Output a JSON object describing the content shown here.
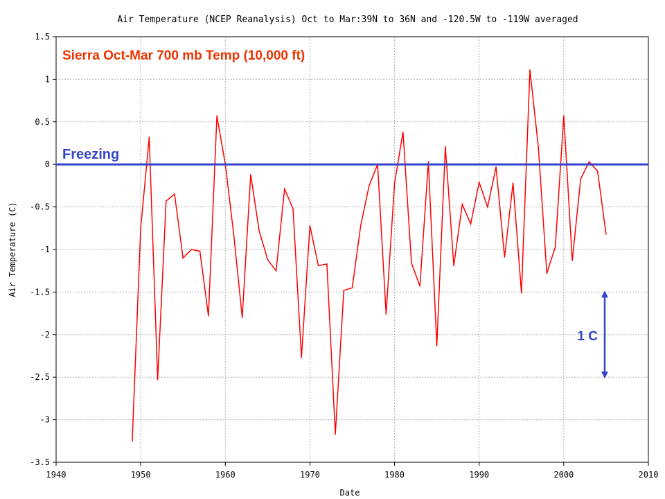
{
  "chart_data": {
    "type": "line",
    "title": "Air Temperature (NCEP Reanalysis) Oct to Mar:39N to 36N and -120.5W to -119W averaged",
    "subtitle": "Sierra Oct-Mar 700 mb Temp  (10,000 ft)",
    "xlabel": "Date",
    "ylabel": "Air Temperature (C)",
    "xlim": [
      1940,
      2010
    ],
    "ylim": [
      -3.5,
      1.5
    ],
    "grid": true,
    "x_ticks": [
      "1940",
      "1950",
      "1960",
      "1970",
      "1980",
      "1990",
      "2000",
      "2010"
    ],
    "y_ticks": [
      "1.5",
      "1",
      "0.5",
      "0",
      "-0.5",
      "-1",
      "-1.5",
      "-2",
      "-2.5",
      "-3",
      "-3.5"
    ],
    "series": [
      {
        "color": "#ff0000",
        "x": [
          1949,
          1950,
          1951,
          1952,
          1953,
          1954,
          1955,
          1956,
          1957,
          1958,
          1959,
          1960,
          1961,
          1962,
          1963,
          1964,
          1965,
          1966,
          1967,
          1968,
          1969,
          1970,
          1971,
          1972,
          1973,
          1974,
          1975,
          1976,
          1977,
          1978,
          1979,
          1980,
          1981,
          1982,
          1983,
          1984,
          1985,
          1986,
          1987,
          1988,
          1989,
          1990,
          1991,
          1992,
          1993,
          1994,
          1995,
          1996,
          1997,
          1998,
          1999,
          2000,
          2001,
          2002,
          2003,
          2004,
          2005
        ],
        "y": [
          -3.25,
          -0.75,
          0.32,
          -2.53,
          -0.43,
          -0.35,
          -1.1,
          -1.0,
          -1.02,
          -1.78,
          0.57,
          0.0,
          -0.83,
          -1.8,
          -0.12,
          -0.78,
          -1.12,
          -1.25,
          -0.29,
          -0.52,
          -2.27,
          -0.72,
          -1.19,
          -1.17,
          -3.17,
          -1.48,
          -1.45,
          -0.72,
          -0.25,
          0.0,
          -1.76,
          -0.22,
          0.38,
          -1.16,
          -1.43,
          0.03,
          -2.13,
          0.21,
          -1.19,
          -0.47,
          -0.7,
          -0.21,
          -0.5,
          -0.03,
          -1.09,
          -0.22,
          -1.51,
          1.11,
          0.2,
          -1.28,
          -0.97,
          0.57,
          -1.13,
          -0.17,
          0.03,
          -0.08,
          -0.82
        ]
      }
    ],
    "annotations": {
      "freezing": {
        "label": "Freezing",
        "y": 0,
        "color": "#3344cc"
      },
      "scale_bar": {
        "label": "1 C",
        "from": -1.5,
        "to": -2.5,
        "x": 2005,
        "color": "#3344cc"
      }
    }
  },
  "colors": {
    "title": "#000000",
    "subtitle": "#ee3300",
    "frame": "#000000",
    "grid": "#b0b0b0",
    "text": "#000000"
  }
}
